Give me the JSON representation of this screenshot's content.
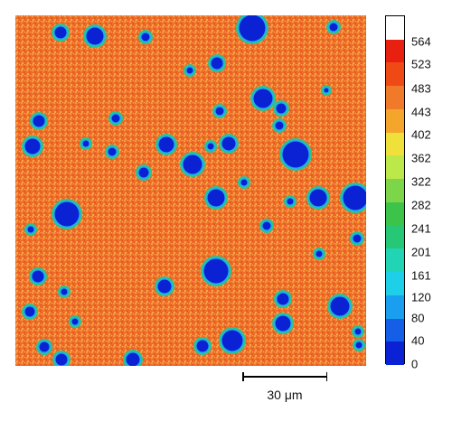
{
  "colorbar": {
    "labels": [
      "564",
      "523",
      "483",
      "443",
      "402",
      "362",
      "322",
      "282",
      "241",
      "201",
      "161",
      "120",
      "80",
      "40",
      "0"
    ],
    "colors": [
      "#ffffff",
      "#e8200f",
      "#ef4a16",
      "#f07a2a",
      "#f4a52c",
      "#f0e03a",
      "#bde84a",
      "#7dd54a",
      "#3cc44a",
      "#26c775",
      "#20d4b4",
      "#1ecfe8",
      "#1a9ff0",
      "#145ee8",
      "#0a22d4"
    ]
  },
  "scale_bar": {
    "label": "30 μm"
  },
  "colors": {
    "background_low": "#ef6a2a",
    "background_high": "#f08838",
    "particle_core": "#0a22d4",
    "particle_ring": "#22c9a0"
  }
}
